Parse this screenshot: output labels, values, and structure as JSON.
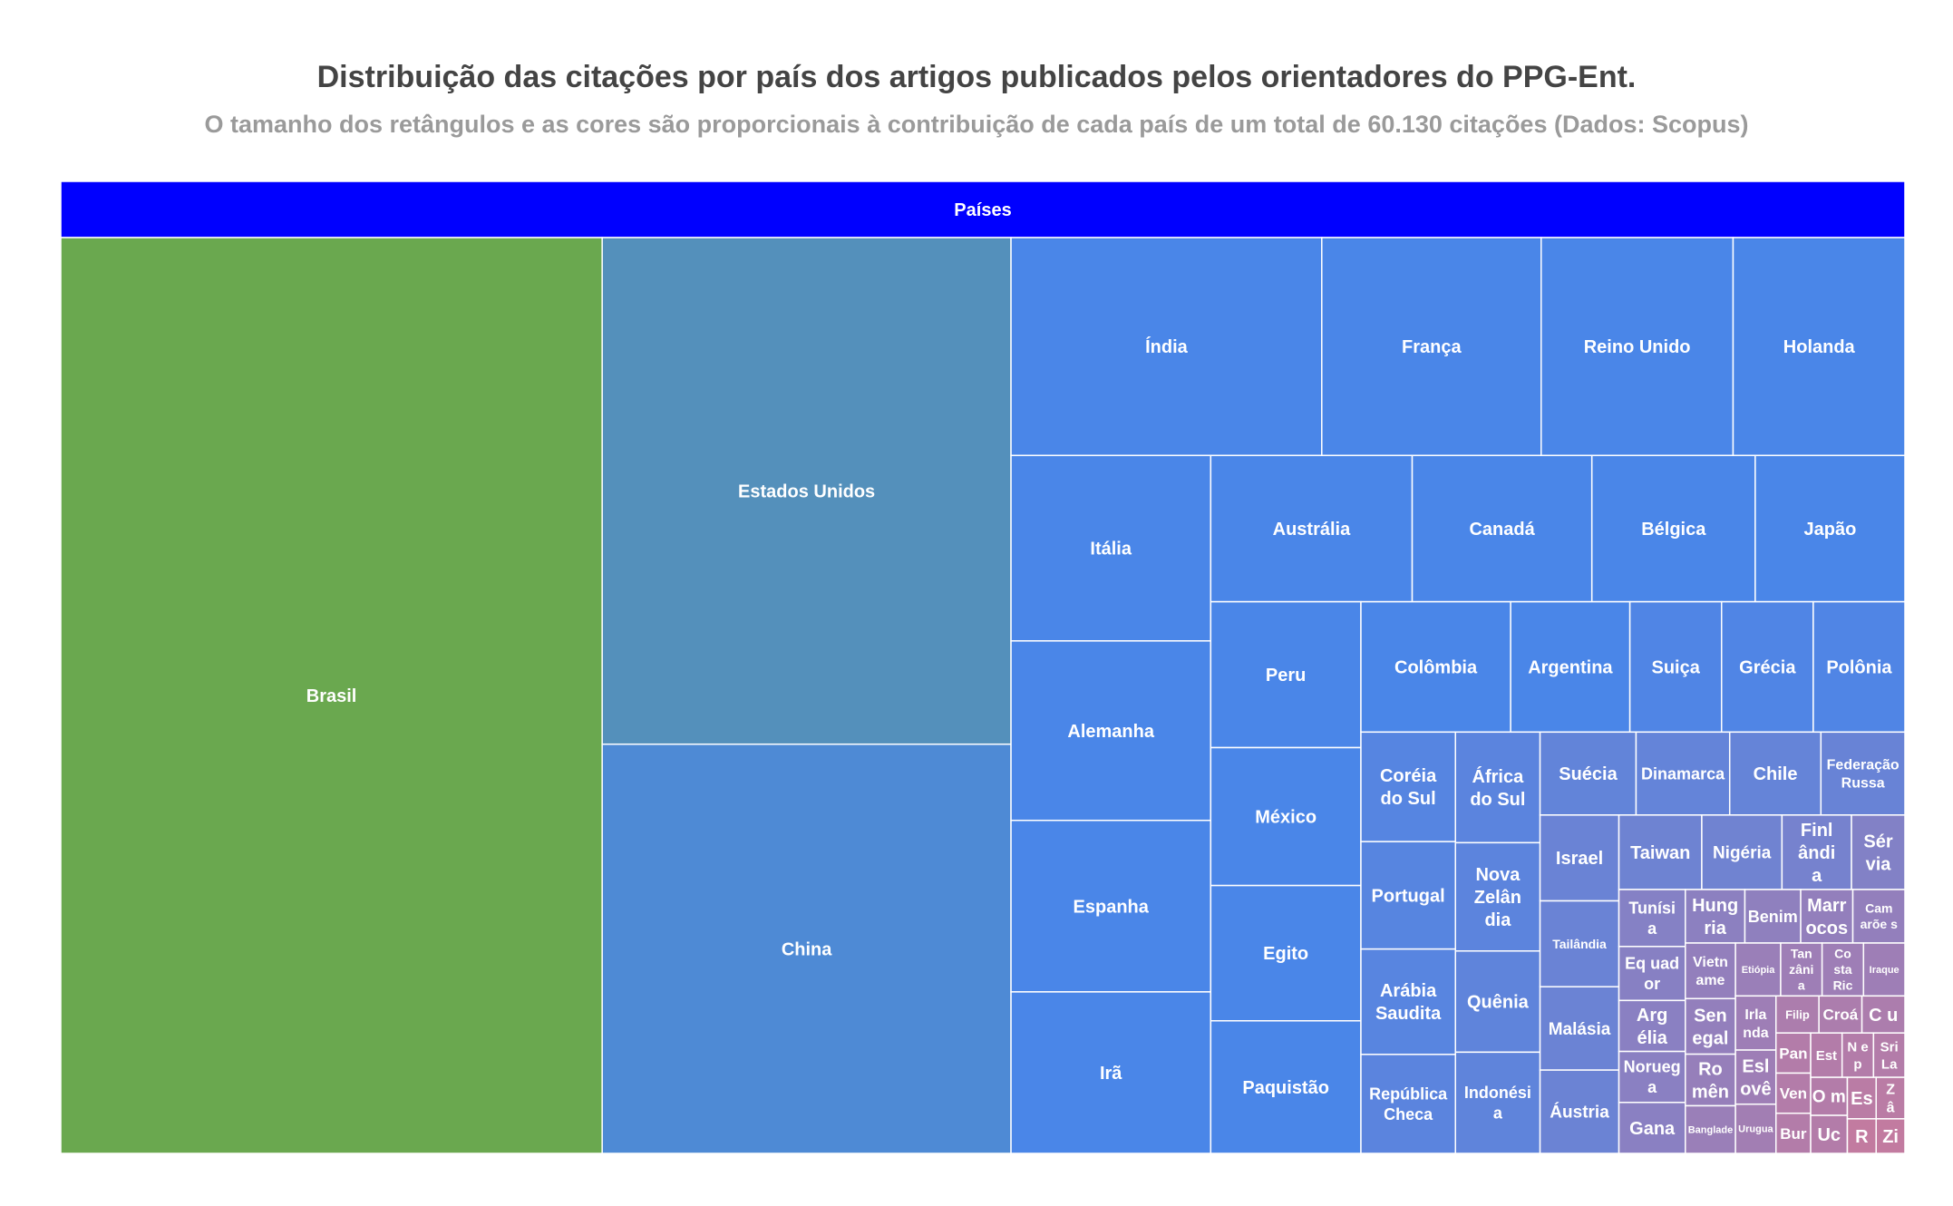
{
  "title": "Distribuição das citações por país dos artigos publicados pelos orientadores do PPG-Ent.",
  "subtitle": "O tamanho dos retângulos e as cores são proporcionais à contribuição de cada país de um total de 60.130 citações (Dados: Scopus)",
  "chart_data": {
    "type": "treemap",
    "root_label": "Países",
    "total_citations": 60130,
    "colors": {
      "root": "#0000ff",
      "high": "#6aa84f",
      "mid": "#4a86e8",
      "low": "#c27ba0"
    },
    "items": [
      {
        "label": "Brasil",
        "value": 12450
      },
      {
        "label": "Estados Unidos",
        "value": 5200
      },
      {
        "label": "China",
        "value": 4200
      },
      {
        "label": "Índia",
        "value": 1700
      },
      {
        "label": "França",
        "value": 1200
      },
      {
        "label": "Reino Unido",
        "value": 1050
      },
      {
        "label": "Holanda",
        "value": 940
      },
      {
        "label": "Alemanha",
        "value": 900
      },
      {
        "label": "Itália",
        "value": 930
      },
      {
        "label": "Espanha",
        "value": 860
      },
      {
        "label": "Irã",
        "value": 810
      },
      {
        "label": "Austrália",
        "value": 740
      },
      {
        "label": "Canadá",
        "value": 660
      },
      {
        "label": "Bélgica",
        "value": 600
      },
      {
        "label": "Japão",
        "value": 550
      },
      {
        "label": "Peru",
        "value": 550
      },
      {
        "label": "México",
        "value": 520
      },
      {
        "label": "Egito",
        "value": 510
      },
      {
        "label": "Paquistão",
        "value": 500
      },
      {
        "label": "Colômbia",
        "value": 490
      },
      {
        "label": "Argentina",
        "value": 390
      },
      {
        "label": "Suiça",
        "value": 300
      },
      {
        "label": "Grécia",
        "value": 300
      },
      {
        "label": "Polônia",
        "value": 300
      },
      {
        "label": "Arábia Saudita",
        "value": 250
      },
      {
        "label": "República Checa",
        "value": 235
      },
      {
        "label": "África do Sul",
        "value": 235
      },
      {
        "label": "Quênia",
        "value": 215
      },
      {
        "label": "Indonésia",
        "value": 215
      },
      {
        "label": "Coréia do Sul",
        "value": 260
      },
      {
        "label": "Portugal",
        "value": 255
      },
      {
        "label": "Suécia",
        "value": 200
      },
      {
        "label": "Dinamarca",
        "value": 195
      },
      {
        "label": "Chile",
        "value": 190
      },
      {
        "label": "Nova Zelândia",
        "value": 230
      },
      {
        "label": "Israel",
        "value": 170
      },
      {
        "label": "Federação Russa",
        "value": 175
      },
      {
        "label": "Tailândia",
        "value": 170
      },
      {
        "label": "Malásia",
        "value": 165
      },
      {
        "label": "Áustria",
        "value": 165
      },
      {
        "label": "Finlândia",
        "value": 130
      },
      {
        "label": "Taiwan",
        "value": 155
      },
      {
        "label": "Nigéria",
        "value": 150
      },
      {
        "label": "Tunísia",
        "value": 95
      },
      {
        "label": "Argélia",
        "value": 85
      },
      {
        "label": "Benim",
        "value": 75
      },
      {
        "label": "Equador",
        "value": 90
      },
      {
        "label": "Noruega",
        "value": 85
      },
      {
        "label": "Gana",
        "value": 85
      },
      {
        "label": "Sérvia",
        "value": 100
      },
      {
        "label": "Bangladesh",
        "value": 60
      },
      {
        "label": "Marrocos",
        "value": 70
      },
      {
        "label": "Camarões",
        "value": 70
      },
      {
        "label": "Hungria",
        "value": 80
      },
      {
        "label": "Etiópia",
        "value": 60
      },
      {
        "label": "Vietname",
        "value": 70
      },
      {
        "label": "Tanzânia",
        "value": 55
      },
      {
        "label": "Costa Rica",
        "value": 55
      },
      {
        "label": "Senegal",
        "value": 70
      },
      {
        "label": "Iraque",
        "value": 55
      },
      {
        "label": "Uruguai",
        "value": 50
      },
      {
        "label": "Romênia",
        "value": 65
      },
      {
        "label": "Irlanda",
        "value": 55
      },
      {
        "label": "Eslovênia",
        "value": 55
      },
      {
        "label": "Filipinas",
        "value": 40
      },
      {
        "label": "Croácia",
        "value": 40
      },
      {
        "label": "Cuba",
        "value": 40
      },
      {
        "label": "Panamá",
        "value": 35
      },
      {
        "label": "Venezuela",
        "value": 35
      },
      {
        "label": "Burkina Faso",
        "value": 35
      },
      {
        "label": "Estônia",
        "value": 35
      },
      {
        "label": "Nepal",
        "value": 35
      },
      {
        "label": "Sri Lanka",
        "value": 35
      },
      {
        "label": "Omã",
        "value": 35
      },
      {
        "label": "Ucrânia",
        "value": 35
      },
      {
        "label": "Escócia",
        "value": 30
      },
      {
        "label": "Zâmbia",
        "value": 30
      },
      {
        "label": "Ruanda",
        "value": 25
      },
      {
        "label": "Zimbabwe",
        "value": 25
      }
    ],
    "visible_labels": {
      "Nova Zelândia": "Nova Zelân dia",
      "Finlândia": "Finl ândi a",
      "Indonésia": "Indonési a",
      "Tunísia": "Tunísi a",
      "Argélia": "Arg élia",
      "Equador": "Eq uad or",
      "Noruega": "Norueg a",
      "Sérvia": "Sér via",
      "Bangladesh": "Banglade",
      "Marrocos": "Marr ocos",
      "Camarões": "Cam arõe s",
      "Hungria": "Hung ria",
      "Vietname": "Vietn ame",
      "Tanzânia": "Tan zâni a",
      "Costa Rica": "Co sta Ric",
      "Senegal": "Sen egal",
      "Uruguai": "Urugua",
      "Romênia": "Ro mên",
      "Irlanda": "Irla nda",
      "Eslovênia": "Esl ovê",
      "Filipinas": "Filip",
      "Croácia": "Croá",
      "Cuba": "C u",
      "Panamá": "Pan",
      "Venezuela": "Ven",
      "Burkina Faso": "Bur",
      "Estônia": "Est",
      "Nepal": "N e p",
      "Sri Lanka": "Sri La",
      "Omã": "O m",
      "Ucrânia": "Uc",
      "Escócia": "Es",
      "Zâmbia": "Z â",
      "Ruanda": "R",
      "Zimbabwe": "Zi"
    }
  }
}
